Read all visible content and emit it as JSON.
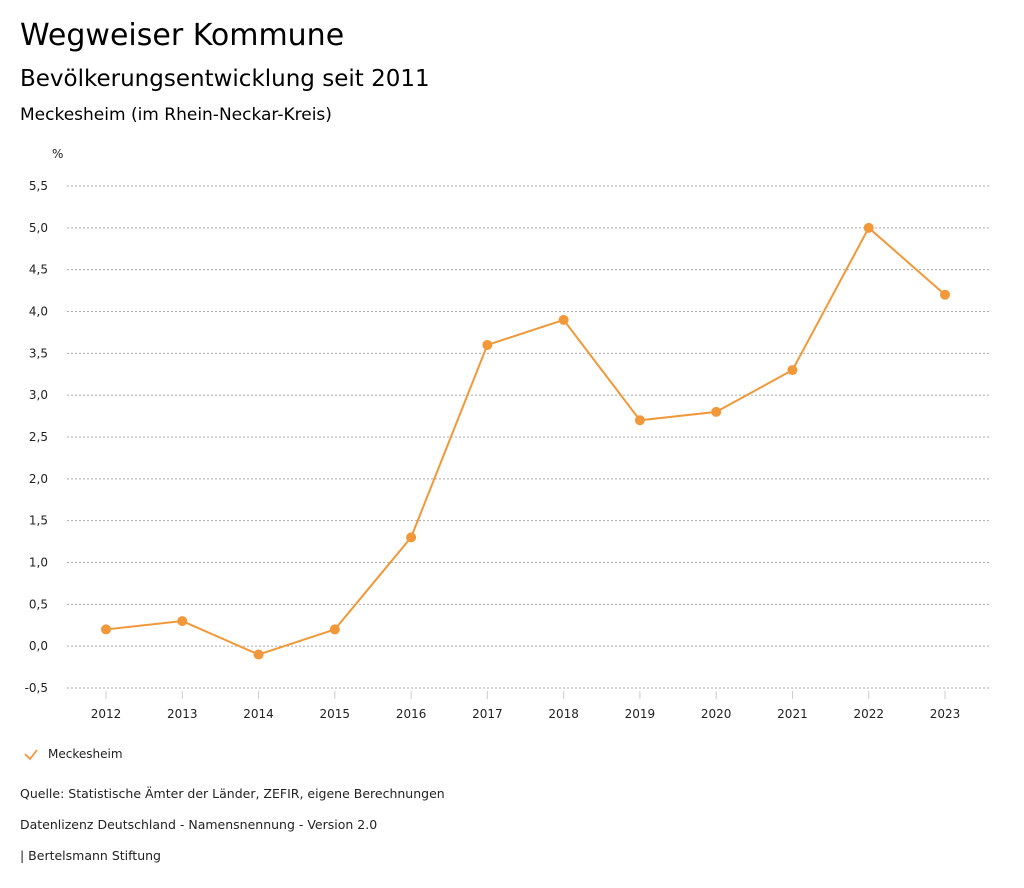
{
  "header": {
    "title": "Wegweiser Kommune",
    "subtitle": "Bevölkerungsentwicklung seit 2011",
    "region": "Meckesheim (im Rhein-Neckar-Kreis)"
  },
  "chart_data": {
    "type": "line",
    "ylabel": "%",
    "ylim": [
      -0.5,
      5.5
    ],
    "yticks": [
      -0.5,
      0,
      0.5,
      1,
      1.5,
      2,
      2.5,
      3,
      3.5,
      4,
      4.5,
      5,
      5.5
    ],
    "ytick_labels": [
      "-0,5",
      "0,0",
      "0,5",
      "1,0",
      "1,5",
      "2,0",
      "2,5",
      "3,0",
      "3,5",
      "4,0",
      "4,5",
      "5,0",
      "5,5"
    ],
    "categories": [
      "2012",
      "2013",
      "2014",
      "2015",
      "2016",
      "2017",
      "2018",
      "2019",
      "2020",
      "2021",
      "2022",
      "2023"
    ],
    "series": [
      {
        "name": "Meckesheim",
        "color": "#f0983a",
        "values": [
          0.2,
          0.3,
          -0.1,
          0.2,
          1.3,
          3.6,
          3.9,
          2.7,
          2.8,
          3.3,
          5.0,
          4.2
        ]
      }
    ],
    "grid": true,
    "legend": "bottom-left"
  },
  "footer": {
    "source": "Quelle: Statistische Ämter der Länder, ZEFIR, eigene Berechnungen",
    "license": "Datenlizenz Deutschland - Namensnennung - Version 2.0",
    "brand": "| Bertelsmann Stiftung"
  }
}
